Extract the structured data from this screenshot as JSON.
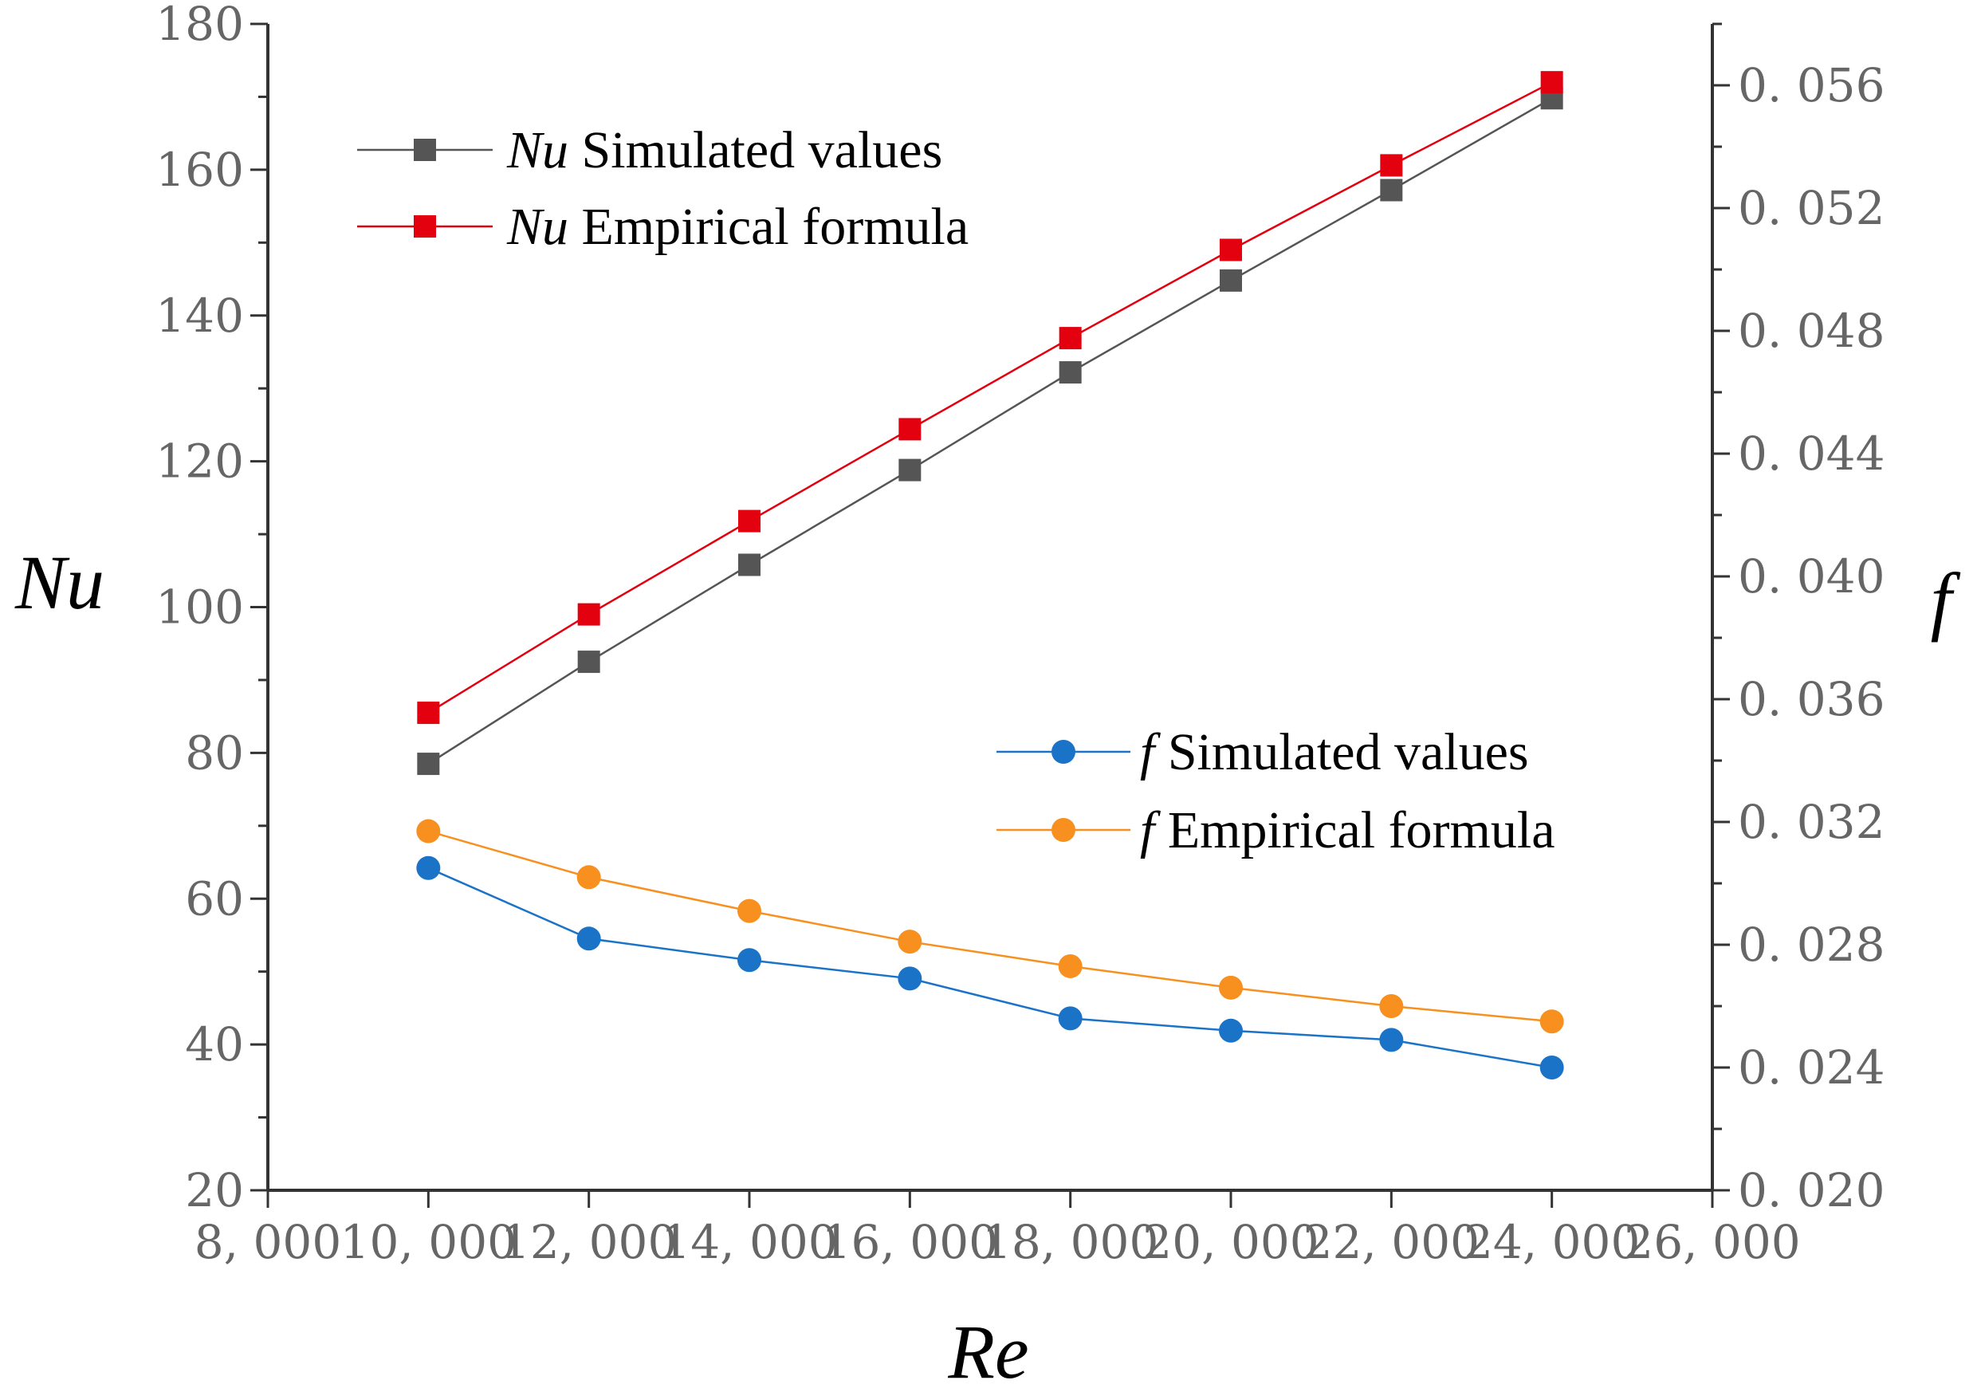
{
  "chart_data": {
    "type": "line",
    "xlabel": "Re",
    "ylabel_left": "Nu",
    "ylabel_right": "f",
    "x_range": [
      8000,
      26000
    ],
    "y_left_range": [
      20,
      180
    ],
    "y_right_range": [
      0.02,
      0.058
    ],
    "x_ticks": [
      {
        "v": 8000,
        "label": "8, 000"
      },
      {
        "v": 10000,
        "label": "10, 000"
      },
      {
        "v": 12000,
        "label": "12, 000"
      },
      {
        "v": 14000,
        "label": "14, 000"
      },
      {
        "v": 16000,
        "label": "16, 000"
      },
      {
        "v": 18000,
        "label": "18, 000"
      },
      {
        "v": 20000,
        "label": "20, 000"
      },
      {
        "v": 22000,
        "label": "22, 000"
      },
      {
        "v": 24000,
        "label": "24, 000"
      },
      {
        "v": 26000,
        "label": "26, 000"
      }
    ],
    "y_left_ticks": [
      {
        "v": 20,
        "label": "20"
      },
      {
        "v": 40,
        "label": "40"
      },
      {
        "v": 60,
        "label": "60"
      },
      {
        "v": 80,
        "label": "80"
      },
      {
        "v": 100,
        "label": "100"
      },
      {
        "v": 120,
        "label": "120"
      },
      {
        "v": 140,
        "label": "140"
      },
      {
        "v": 160,
        "label": "160"
      },
      {
        "v": 180,
        "label": "180"
      }
    ],
    "y_right_ticks": [
      {
        "v": 0.02,
        "label": "0. 020"
      },
      {
        "v": 0.024,
        "label": "0. 024"
      },
      {
        "v": 0.028,
        "label": "0. 028"
      },
      {
        "v": 0.032,
        "label": "0. 032"
      },
      {
        "v": 0.036,
        "label": "0. 036"
      },
      {
        "v": 0.04,
        "label": "0. 040"
      },
      {
        "v": 0.044,
        "label": "0. 044"
      },
      {
        "v": 0.048,
        "label": "0. 048"
      },
      {
        "v": 0.052,
        "label": "0. 052"
      },
      {
        "v": 0.056,
        "label": "0. 056"
      }
    ],
    "x": [
      10000,
      12000,
      14000,
      16000,
      18000,
      20000,
      22000,
      24000
    ],
    "series": [
      {
        "name": "Simulated values",
        "symbol": "Nu",
        "axis": "left",
        "marker": "square",
        "color": "#555555",
        "values": [
          78.5,
          92.5,
          105.8,
          118.8,
          132.2,
          144.8,
          157.2,
          169.8
        ]
      },
      {
        "name": "Empirical formula",
        "symbol": "Nu",
        "axis": "left",
        "marker": "square",
        "color": "#e3000f",
        "values": [
          85.5,
          99.0,
          111.8,
          124.4,
          136.9,
          149.0,
          160.6,
          172.0
        ]
      },
      {
        "name": "Simulated values",
        "symbol": "f",
        "axis": "right",
        "marker": "circle",
        "color": "#1a73c7",
        "values": [
          0.0305,
          0.0282,
          0.0275,
          0.0269,
          0.0256,
          0.0252,
          0.0249,
          0.024
        ]
      },
      {
        "name": "Empirical formula",
        "symbol": "f",
        "axis": "right",
        "marker": "circle",
        "color": "#f7901e",
        "values": [
          0.0317,
          0.0302,
          0.0291,
          0.0281,
          0.0273,
          0.0266,
          0.026,
          0.0255
        ]
      }
    ],
    "legend": [
      {
        "placement": "top-left",
        "items": [
          0,
          1
        ]
      },
      {
        "placement": "center-right",
        "items": [
          2,
          3
        ]
      }
    ],
    "grid": false
  }
}
